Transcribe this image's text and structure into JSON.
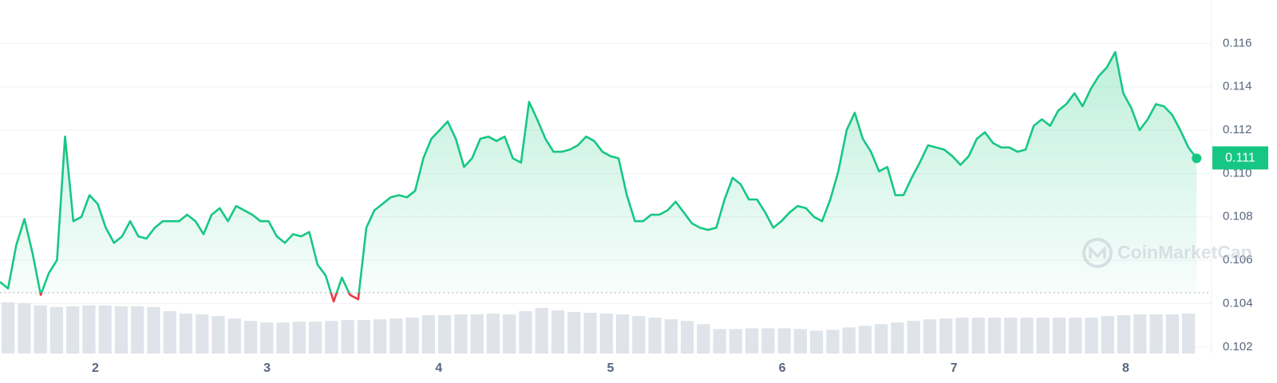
{
  "chart_data": {
    "type": "line",
    "x": [
      1.445,
      1.492,
      1.54,
      1.587,
      1.635,
      1.682,
      1.729,
      1.777,
      1.824,
      1.872,
      1.919,
      1.966,
      2.014,
      2.061,
      2.109,
      2.156,
      2.203,
      2.251,
      2.298,
      2.346,
      2.393,
      2.44,
      2.488,
      2.535,
      2.583,
      2.63,
      2.677,
      2.725,
      2.772,
      2.82,
      2.867,
      2.914,
      2.962,
      3.009,
      3.057,
      3.104,
      3.151,
      3.199,
      3.246,
      3.294,
      3.341,
      3.388,
      3.436,
      3.483,
      3.531,
      3.578,
      3.625,
      3.673,
      3.72,
      3.768,
      3.815,
      3.862,
      3.91,
      3.957,
      4.005,
      4.052,
      4.099,
      4.147,
      4.194,
      4.242,
      4.289,
      4.336,
      4.384,
      4.431,
      4.479,
      4.526,
      4.573,
      4.621,
      4.668,
      4.716,
      4.763,
      4.81,
      4.858,
      4.905,
      4.953,
      5.0,
      5.047,
      5.095,
      5.142,
      5.19,
      5.237,
      5.284,
      5.332,
      5.379,
      5.427,
      5.474,
      5.521,
      5.569,
      5.616,
      5.664,
      5.711,
      5.758,
      5.806,
      5.853,
      5.901,
      5.948,
      5.995,
      6.043,
      6.09,
      6.138,
      6.185,
      6.232,
      6.28,
      6.327,
      6.375,
      6.422,
      6.469,
      6.517,
      6.564,
      6.612,
      6.659,
      6.706,
      6.754,
      6.801,
      6.849,
      6.896,
      6.943,
      6.991,
      7.038,
      7.086,
      7.133,
      7.18,
      7.228,
      7.275,
      7.323,
      7.37,
      7.417,
      7.465,
      7.512,
      7.56,
      7.607,
      7.654,
      7.702,
      7.749,
      7.797,
      7.844,
      7.891,
      7.939,
      7.986,
      8.034,
      8.081,
      8.128,
      8.176,
      8.223,
      8.271,
      8.318,
      8.365,
      8.413
    ],
    "series": [
      {
        "color": "#16c784",
        "negative_color": "#ea3943",
        "values": [
          0.105,
          0.1047,
          0.1067,
          0.1079,
          0.1063,
          0.1044,
          0.1054,
          0.106,
          0.1117,
          0.1078,
          0.108,
          0.109,
          0.1086,
          0.1075,
          0.1068,
          0.1071,
          0.1078,
          0.1071,
          0.107,
          0.1075,
          0.1078,
          0.1078,
          0.1078,
          0.1081,
          0.1078,
          0.1072,
          0.1081,
          0.1084,
          0.1078,
          0.1085,
          0.1083,
          0.1081,
          0.1078,
          0.1078,
          0.1071,
          0.1068,
          0.1072,
          0.1071,
          0.1073,
          0.1058,
          0.1053,
          0.1041,
          0.1052,
          0.1044,
          0.1042,
          0.1075,
          0.1083,
          0.1086,
          0.1089,
          0.109,
          0.1089,
          0.1092,
          0.1107,
          0.1116,
          0.112,
          0.1124,
          0.1116,
          0.1103,
          0.1107,
          0.1116,
          0.1117,
          0.1115,
          0.1117,
          0.1107,
          0.1105,
          0.1133,
          0.1125,
          0.1116,
          0.111,
          0.111,
          0.1111,
          0.1113,
          0.1117,
          0.1115,
          0.111,
          0.1108,
          0.1107,
          0.109,
          0.1078,
          0.1078,
          0.1081,
          0.1081,
          0.1083,
          0.1087,
          0.1082,
          0.1077,
          0.1075,
          0.1074,
          0.1075,
          0.1088,
          0.1098,
          0.1095,
          0.1088,
          0.1088,
          0.1082,
          0.1075,
          0.1078,
          0.1082,
          0.1085,
          0.1084,
          0.108,
          0.1078,
          0.1088,
          0.1101,
          0.112,
          0.1128,
          0.1116,
          0.111,
          0.1101,
          0.1103,
          0.109,
          0.109,
          0.1098,
          0.1105,
          0.1113,
          0.1112,
          0.1111,
          0.1108,
          0.1104,
          0.1108,
          0.1116,
          0.1119,
          0.1114,
          0.1112,
          0.1112,
          0.111,
          0.1111,
          0.1122,
          0.1125,
          0.1122,
          0.1129,
          0.1132,
          0.1137,
          0.1131,
          0.1139,
          0.1145,
          0.1149,
          0.1156,
          0.1137,
          0.113,
          0.112,
          0.1125,
          0.1132,
          0.1131,
          0.1127,
          0.112,
          0.1112,
          0.1107
        ]
      }
    ],
    "reference_value": 0.1045,
    "xlim": [
      1.445,
      8.5
    ],
    "ylim": [
      0.1017,
      0.118
    ],
    "xticks": [
      2,
      3,
      4,
      5,
      6,
      7,
      8
    ],
    "yticks": [
      0.102,
      0.104,
      0.106,
      0.108,
      {
        "value": 0.11,
        "label": "0.110"
      },
      0.112,
      0.114,
      0.116
    ],
    "grid": true,
    "last_label": "0.111",
    "volume": {
      "color": "#dfe3ea",
      "lim": [
        0,
        100
      ],
      "values": [
        63,
        62,
        59,
        57,
        58,
        59,
        59,
        58,
        58,
        57,
        52,
        49,
        48,
        46,
        43,
        40,
        38,
        38,
        39,
        39,
        40,
        41,
        41,
        42,
        43,
        44,
        47,
        47,
        48,
        48,
        49,
        48,
        52,
        56,
        53,
        51,
        50,
        49,
        48,
        46,
        44,
        42,
        40,
        36,
        30,
        30,
        31,
        31,
        31,
        30,
        28,
        29,
        32,
        34,
        36,
        38,
        40,
        42,
        43,
        44,
        44,
        44,
        44,
        44,
        44,
        44,
        44,
        44,
        46,
        47,
        48,
        48,
        48,
        49
      ]
    },
    "watermark": "CoinMarketCap"
  }
}
